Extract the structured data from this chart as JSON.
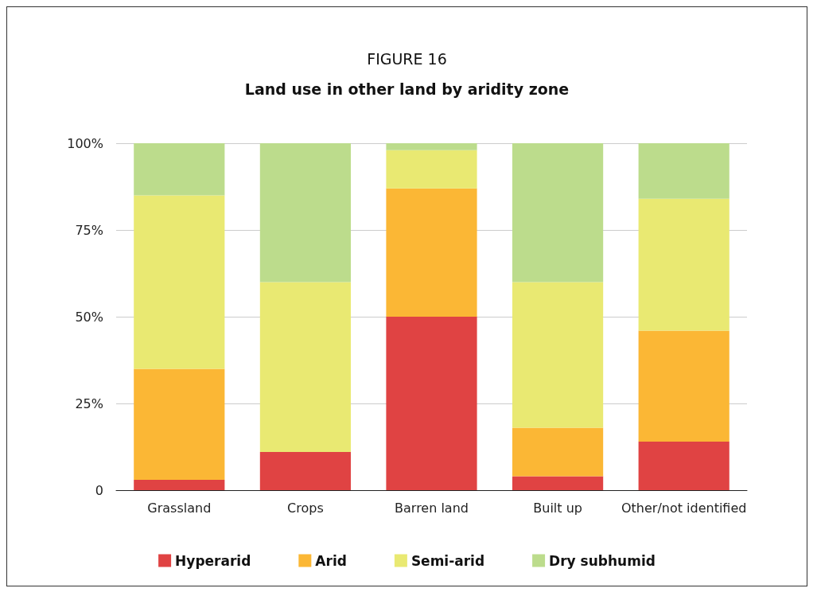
{
  "chart_data": {
    "type": "bar",
    "title": "FIGURE 16",
    "subtitle": "Land use in other land by aridity zone",
    "stacked": true,
    "categories": [
      "Grassland",
      "Crops",
      "Barren land",
      "Built up",
      "Other/not identified"
    ],
    "series": [
      {
        "name": "Hyperarid",
        "color": "#e04343",
        "values": [
          3,
          11,
          50,
          4,
          14
        ]
      },
      {
        "name": "Arid",
        "color": "#fbb735",
        "values": [
          32,
          0,
          37,
          14,
          32
        ]
      },
      {
        "name": "Semi-arid",
        "color": "#e9e972",
        "values": [
          50,
          49,
          11,
          42,
          38
        ]
      },
      {
        "name": "Dry subhumid",
        "color": "#bcdc8c",
        "values": [
          15,
          40,
          2,
          40,
          16
        ]
      }
    ],
    "ylim": [
      0,
      100
    ],
    "yticks": [
      {
        "value": 0,
        "label": "0"
      },
      {
        "value": 25,
        "label": "25%"
      },
      {
        "value": 50,
        "label": "50%"
      },
      {
        "value": 75,
        "label": "75%"
      },
      {
        "value": 100,
        "label": "100%"
      }
    ],
    "grid": "y",
    "legend": "bottom"
  }
}
